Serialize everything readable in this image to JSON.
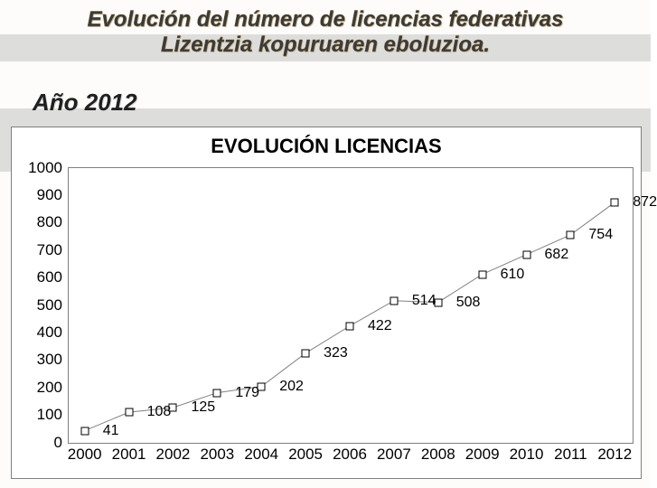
{
  "title_line1": "Evolución del número de licencias federativas",
  "title_line2": "Lizentzia kopuruaren eboluzioa.",
  "year_label": "Año 2012",
  "chart": {
    "type": "line",
    "title": "EVOLUCIÓN LICENCIAS",
    "x_categories": [
      "2000",
      "2001",
      "2002",
      "2003",
      "2004",
      "2005",
      "2006",
      "2007",
      "2008",
      "2009",
      "2010",
      "2011",
      "2012"
    ],
    "values": [
      41,
      108,
      125,
      179,
      202,
      323,
      422,
      514,
      508,
      610,
      682,
      754,
      872
    ],
    "ylim": [
      0,
      1000
    ],
    "ytick_step": 100,
    "line_color": "#808080",
    "line_width": 1,
    "marker_fill": "#ffffff",
    "marker_border": "#000000",
    "marker_size": 7,
    "label_fontsize": 16,
    "title_fontsize": 22,
    "plot_border_color": "#808080",
    "background_color": "#ffffff",
    "axis_fontsize": 17
  }
}
